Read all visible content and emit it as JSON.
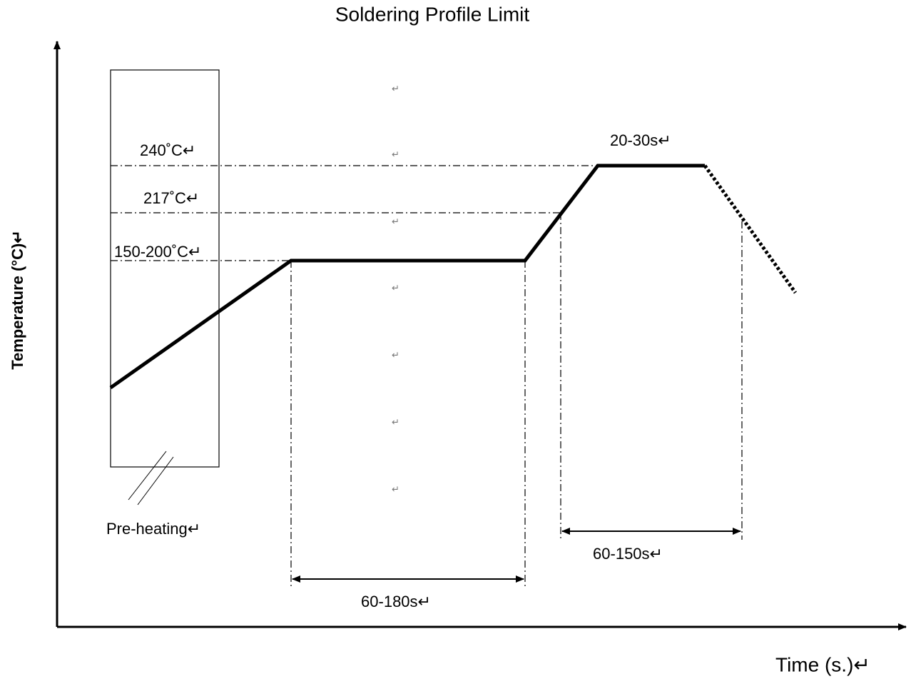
{
  "title": "Soldering Profile Limit",
  "y_axis_label": "Temperature (°C)↵",
  "x_axis_label": "Time (s.)↵",
  "levels": [
    "240˚C↵",
    "217˚C↵",
    "150-200˚C↵"
  ],
  "durations": {
    "peak": "20-30s↵",
    "soak": "60-180s↵",
    "reflow": "60-150s↵"
  },
  "preheat_label": "Pre-heating↵",
  "markers": [
    "↵",
    "↵",
    "↵",
    "↵",
    "↵",
    "↵",
    "↵"
  ]
}
